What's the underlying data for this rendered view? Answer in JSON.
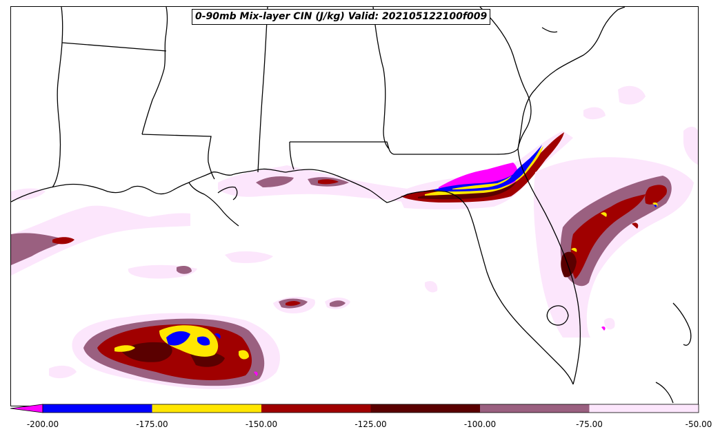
{
  "title": "0-90mb Mix-layer CIN (J/kg) Valid: 202105122100f009",
  "colors": {
    "below_min": "#ff00ff",
    "c1": "#0000ff",
    "c2": "#ffe600",
    "c3": "#a00000",
    "c4": "#5a0000",
    "c5": "#9a6080",
    "c6": "#fce6fc",
    "land_outline": "#000000"
  },
  "colorbar": {
    "ticks": [
      "-200.00",
      "-175.00",
      "-150.00",
      "-125.00",
      "-100.00",
      "-75.00",
      "-50.00"
    ],
    "extend": "min"
  }
}
